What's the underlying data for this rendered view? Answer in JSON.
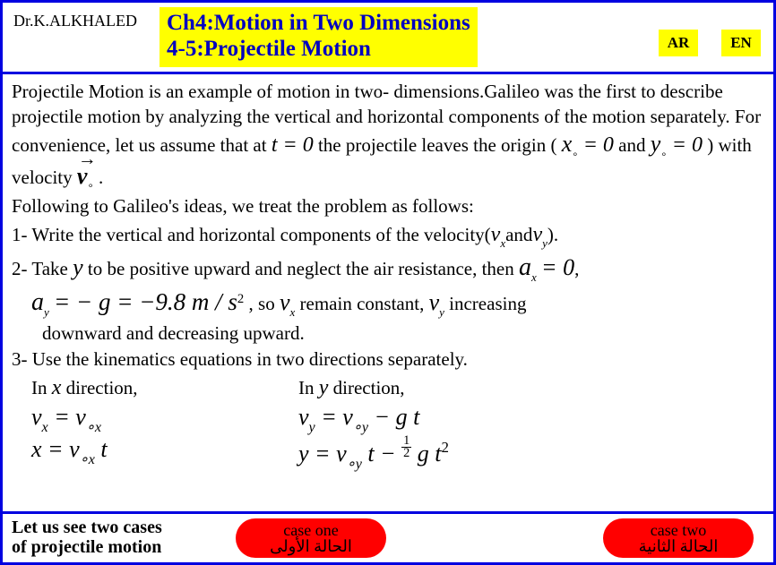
{
  "author": "Dr.K.ALKHALED",
  "title_line1": "Ch4:Motion in Two Dimensions",
  "title_line2": " 4-5:Projectile Motion",
  "lang_ar": "AR",
  "lang_en": "EN",
  "p1": "Projectile Motion  is an example of motion in   two- dimensions.Galileo was the first to describe projectile motion by analyzing the vertical and horizontal components of the motion separately. For convenience, let us assume that at ",
  "t0_eq": "t = 0",
  "p1b": " the projectile leaves  the origin (   ",
  "x0eq": "x",
  "eq0a": " = 0",
  "andword": "  and  ",
  "y0eq": "y",
  "eq0b": " = 0",
  "p1c": ") with velocity  ",
  "v0sym": "v",
  "dot": ".",
  "p2": "Following to  Galileo's ideas,  we treat the problem as follows:",
  "p3a": "1- Write   the vertical and horizontal components of the velocity(",
  "vx": "v",
  "sx": "x",
  "andw": "and",
  "vy": "v",
  "sy": "y",
  "p3b": ").",
  "p4a": "2-  Take   ",
  "ysym": "y",
  "p4b": "   to be    positive  upward and neglect the air resistance, then ",
  "ax0": "a",
  "axsub": "x",
  "ax0v": " = 0",
  "comma": ",",
  "p5eq1": "a",
  "p5sub": "y",
  "p5eq2": " = − g = −9.8 m / s",
  "sq": "2",
  "p5b": ",  so  ",
  "p5vx": "v",
  "p5vxs": "x",
  "p5c": "   remain constant,    ",
  "p5vy": "v",
  "p5vys": "y",
  "p5d": "increasing",
  "p6": "downward and decreasing upward.",
  "p7": "3- Use the kinematics equations in two directions  separately.",
  "p8a": "In ",
  "p8x": "x",
  "p8b": " direction,",
  "p8c": "In ",
  "p8y": "y",
  "p8d": " direction,",
  "eqL1_lhs": "v",
  "eqL1_sub": "x",
  "eqL1_eq": " = v",
  "eqL1_sub2": "∘x",
  "eqL2_lhs": "x = v",
  "eqL2_sub": "∘x",
  "eqL2_t": " t",
  "eqR1_lhs": "v",
  "eqR1_sub": "y",
  "eqR1_eq": " = v",
  "eqR1_sub2": "∘y",
  "eqR1_end": " − g t",
  "eqR2_lhs": "y = v",
  "eqR2_sub": "∘y",
  "eqR2_mid": " t − ",
  "eqR2_end": " g t",
  "footer_l1": "Let us see two cases",
  "footer_l2": "of projectile motion",
  "case1_en": "case one",
  "case1_ar": "الحالة الأولى",
  "case2_en": "case two",
  "case2_ar": "الحالة الثانية",
  "colors": {
    "frame": "#0000e0",
    "title_bg": "#ffff00",
    "title_fg": "#0000c0",
    "case_bg": "#ff0000"
  }
}
